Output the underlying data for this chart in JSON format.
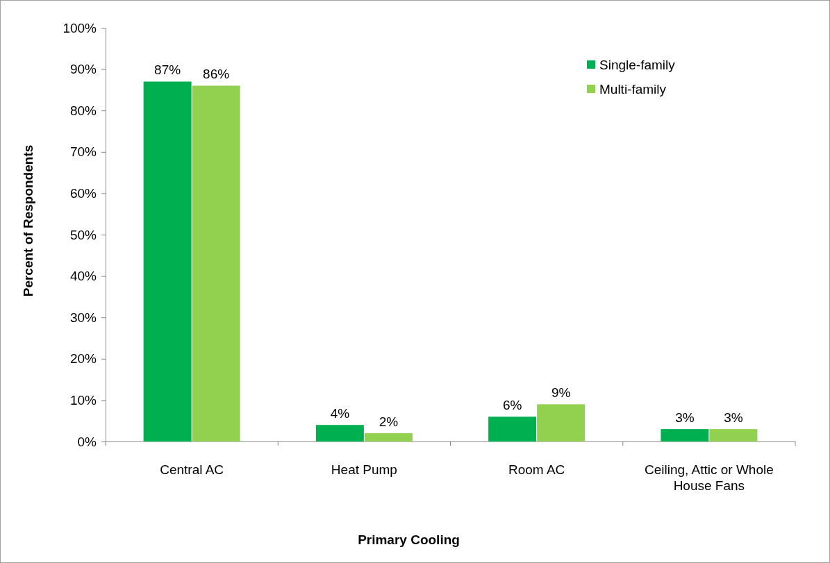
{
  "chart_data": {
    "type": "bar",
    "xlabel": "Primary Cooling",
    "ylabel": "Percent of Respondents",
    "categories": [
      "Central AC",
      "Heat Pump",
      "Room AC",
      "Ceiling, Attic or Whole House Fans"
    ],
    "series": [
      {
        "name": "Single-family",
        "color": "#00b050",
        "values": [
          87,
          4,
          6,
          3
        ],
        "value_labels": [
          "87%",
          "4%",
          "6%",
          "3%"
        ]
      },
      {
        "name": "Multi-family",
        "color": "#92d050",
        "values": [
          86,
          2,
          9,
          3
        ],
        "value_labels": [
          "86%",
          "2%",
          "9%",
          "3%"
        ]
      }
    ],
    "ylim": [
      0,
      100
    ],
    "yticks": [
      {
        "value": 0,
        "label": "0%"
      },
      {
        "value": 10,
        "label": "10%"
      },
      {
        "value": 20,
        "label": "20%"
      },
      {
        "value": 30,
        "label": "30%"
      },
      {
        "value": 40,
        "label": "40%"
      },
      {
        "value": 50,
        "label": "50%"
      },
      {
        "value": 60,
        "label": "60%"
      },
      {
        "value": 70,
        "label": "70%"
      },
      {
        "value": 80,
        "label": "80%"
      },
      {
        "value": 90,
        "label": "90%"
      },
      {
        "value": 100,
        "label": "100%"
      }
    ],
    "legend": "top right",
    "grid": false
  }
}
